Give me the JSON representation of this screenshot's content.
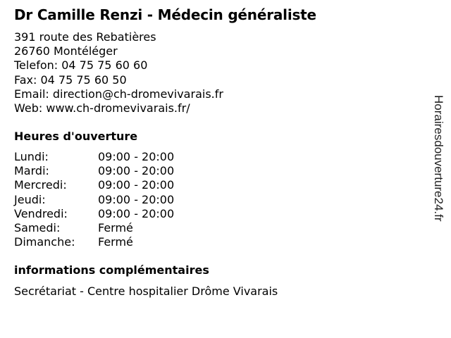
{
  "title": "Dr Camille Renzi - Médecin généraliste",
  "contact": {
    "address1": "391 route des Rebatières",
    "address2": "26760 Montéléger",
    "phone": "Telefon: 04 75 75 60 60",
    "fax": "Fax: 04 75 75 60 50",
    "email": "Email: direction@ch-dromevivarais.fr",
    "web": "Web: www.ch-dromevivarais.fr/"
  },
  "hours_heading": "Heures d'ouverture",
  "hours": [
    {
      "day": "Lundi:",
      "time": "09:00 - 20:00"
    },
    {
      "day": "Mardi:",
      "time": "09:00 - 20:00"
    },
    {
      "day": "Mercredi:",
      "time": "09:00 - 20:00"
    },
    {
      "day": "Jeudi:",
      "time": "09:00 - 20:00"
    },
    {
      "day": "Vendredi:",
      "time": "09:00 - 20:00"
    },
    {
      "day": "Samedi:",
      "time": "Fermé"
    },
    {
      "day": "Dimanche:",
      "time": "Fermé"
    }
  ],
  "info_heading": "informations complémentaires",
  "info_text": "Secrétariat - Centre hospitalier Drôme Vivarais",
  "watermark": "Horairesdouverture24.fr"
}
